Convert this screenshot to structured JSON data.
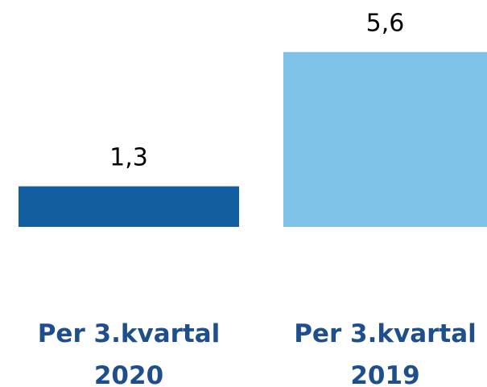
{
  "chart_data": {
    "type": "bar",
    "categories": [
      "Per 3.kvartal 2020",
      "Per 3.kvartal 2019"
    ],
    "values": [
      1.3,
      5.6
    ],
    "value_labels": [
      "1,3",
      "5,6"
    ],
    "colors": [
      "#135ea0",
      "#7fc4e8"
    ]
  }
}
